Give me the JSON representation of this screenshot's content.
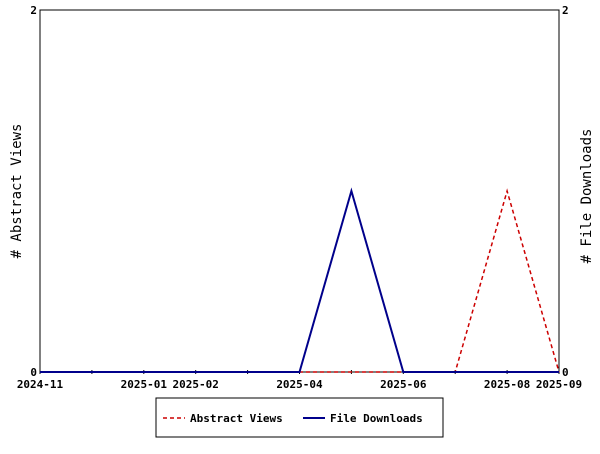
{
  "chart_data": {
    "type": "line",
    "x": [
      "2024-11",
      "2024-12",
      "2025-01",
      "2025-02",
      "2025-03",
      "2025-04",
      "2025-05",
      "2025-06",
      "2025-07",
      "2025-08",
      "2025-09"
    ],
    "x_tick_labels": [
      {
        "x": "2024-11",
        "label": "2024-11"
      },
      {
        "x": "2025-01",
        "label": "2025-01"
      },
      {
        "x": "2025-02",
        "label": "2025-02"
      },
      {
        "x": "2025-04",
        "label": "2025-04"
      },
      {
        "x": "2025-06",
        "label": "2025-06"
      },
      {
        "x": "2025-08",
        "label": "2025-08"
      },
      {
        "x": "2025-09",
        "label": "2025-09"
      }
    ],
    "series": [
      {
        "name": "Abstract Views",
        "axis": "left",
        "color": "#cc0000",
        "dash": "dashed",
        "values": [
          0,
          0,
          0,
          0,
          0,
          0,
          0,
          0,
          0,
          1,
          0
        ]
      },
      {
        "name": "File Downloads",
        "axis": "right",
        "color": "#00008b",
        "dash": "solid",
        "values": [
          0,
          0,
          0,
          0,
          0,
          0,
          1,
          0,
          0,
          0,
          0
        ]
      }
    ],
    "ylabel_left": "# Abstract Views",
    "ylabel_right": "# File Downloads",
    "ylim_left": [
      0,
      2
    ],
    "ylim_right": [
      0,
      2
    ],
    "y_tick_labels_left": [
      "0",
      "2"
    ],
    "y_tick_labels_right": [
      "0",
      "2"
    ],
    "legend_position": "bottom-center",
    "grid": false
  }
}
